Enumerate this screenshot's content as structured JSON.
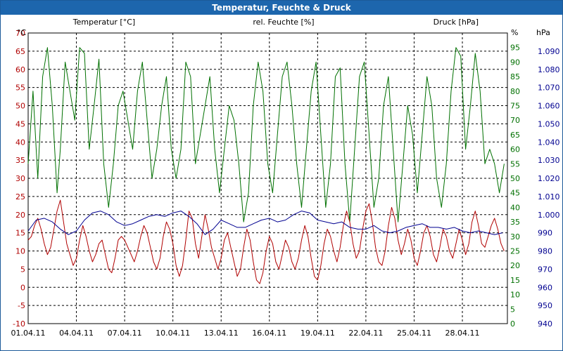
{
  "window": {
    "title": "Temperatur, Feuchte & Druck"
  },
  "chart_data": {
    "type": "line",
    "title": "Temperatur, Feuchte & Druck",
    "grid": true,
    "xlabel": "",
    "x_ticks": [
      "01.04.11",
      "04.04.11",
      "07.04.11",
      "10.04.11",
      "13.04.11",
      "16.04.11",
      "19.04.11",
      "22.04.11",
      "25.04.11",
      "28.04.11"
    ],
    "x_day_range": [
      1,
      30.8
    ],
    "axes": {
      "temperature": {
        "label": "Temperatur [°C]",
        "unit": "°C",
        "min": -10,
        "max": 70,
        "step": 5,
        "color": "#b00000",
        "side": "left"
      },
      "humidity": {
        "label": "rel. Feuchte [%]",
        "unit": "%",
        "min": 0,
        "max": 100,
        "step": 5,
        "color": "#007000",
        "side": "right"
      },
      "pressure": {
        "label": "Druck [hPa]",
        "unit": "hPa",
        "min": 940,
        "max": 1100,
        "step": 10,
        "color": "#000090",
        "side": "right"
      }
    },
    "series": [
      {
        "name": "Temperatur [°C]",
        "axis": "temperature",
        "color": "#b00000",
        "points": [
          [
            1.0,
            13
          ],
          [
            1.2,
            14
          ],
          [
            1.4,
            17
          ],
          [
            1.6,
            19
          ],
          [
            1.8,
            16
          ],
          [
            2.0,
            12
          ],
          [
            2.2,
            9
          ],
          [
            2.4,
            11
          ],
          [
            2.6,
            16
          ],
          [
            2.8,
            21
          ],
          [
            3.0,
            24
          ],
          [
            3.2,
            18
          ],
          [
            3.4,
            12
          ],
          [
            3.6,
            9
          ],
          [
            3.8,
            6
          ],
          [
            4.0,
            8
          ],
          [
            4.2,
            13
          ],
          [
            4.4,
            17
          ],
          [
            4.6,
            14
          ],
          [
            4.8,
            10
          ],
          [
            5.0,
            7
          ],
          [
            5.2,
            9
          ],
          [
            5.4,
            12
          ],
          [
            5.6,
            13
          ],
          [
            5.8,
            9
          ],
          [
            6.0,
            5
          ],
          [
            6.2,
            4
          ],
          [
            6.4,
            8
          ],
          [
            6.6,
            13
          ],
          [
            6.8,
            14
          ],
          [
            7.0,
            13
          ],
          [
            7.2,
            11
          ],
          [
            7.4,
            9
          ],
          [
            7.6,
            7
          ],
          [
            7.8,
            10
          ],
          [
            8.0,
            14
          ],
          [
            8.2,
            17
          ],
          [
            8.4,
            15
          ],
          [
            8.6,
            11
          ],
          [
            8.8,
            7
          ],
          [
            9.0,
            5
          ],
          [
            9.2,
            8
          ],
          [
            9.4,
            14
          ],
          [
            9.6,
            18
          ],
          [
            9.8,
            16
          ],
          [
            10.0,
            12
          ],
          [
            10.2,
            6
          ],
          [
            10.4,
            3
          ],
          [
            10.6,
            6
          ],
          [
            10.8,
            13
          ],
          [
            11.0,
            21
          ],
          [
            11.2,
            19
          ],
          [
            11.4,
            12
          ],
          [
            11.6,
            8
          ],
          [
            11.8,
            14
          ],
          [
            12.0,
            20
          ],
          [
            12.2,
            16
          ],
          [
            12.4,
            11
          ],
          [
            12.6,
            8
          ],
          [
            12.8,
            5
          ],
          [
            13.0,
            8
          ],
          [
            13.2,
            13
          ],
          [
            13.4,
            15
          ],
          [
            13.6,
            11
          ],
          [
            13.8,
            7
          ],
          [
            14.0,
            3
          ],
          [
            14.2,
            5
          ],
          [
            14.4,
            11
          ],
          [
            14.6,
            16
          ],
          [
            14.8,
            13
          ],
          [
            15.0,
            7
          ],
          [
            15.2,
            2
          ],
          [
            15.4,
            1
          ],
          [
            15.6,
            4
          ],
          [
            15.8,
            10
          ],
          [
            16.0,
            14
          ],
          [
            16.2,
            12
          ],
          [
            16.4,
            7
          ],
          [
            16.6,
            5
          ],
          [
            16.8,
            9
          ],
          [
            17.0,
            13
          ],
          [
            17.2,
            11
          ],
          [
            17.4,
            7
          ],
          [
            17.6,
            5
          ],
          [
            17.8,
            8
          ],
          [
            18.0,
            13
          ],
          [
            18.2,
            17
          ],
          [
            18.4,
            14
          ],
          [
            18.6,
            8
          ],
          [
            18.8,
            3
          ],
          [
            19.0,
            2
          ],
          [
            19.2,
            6
          ],
          [
            19.4,
            12
          ],
          [
            19.6,
            16
          ],
          [
            19.8,
            14
          ],
          [
            20.0,
            10
          ],
          [
            20.2,
            7
          ],
          [
            20.4,
            11
          ],
          [
            20.6,
            17
          ],
          [
            20.8,
            21
          ],
          [
            21.0,
            18
          ],
          [
            21.2,
            12
          ],
          [
            21.4,
            8
          ],
          [
            21.6,
            10
          ],
          [
            21.8,
            16
          ],
          [
            22.0,
            21
          ],
          [
            22.2,
            23
          ],
          [
            22.4,
            18
          ],
          [
            22.6,
            11
          ],
          [
            22.8,
            7
          ],
          [
            23.0,
            6
          ],
          [
            23.2,
            10
          ],
          [
            23.4,
            17
          ],
          [
            23.6,
            22
          ],
          [
            23.8,
            19
          ],
          [
            24.0,
            13
          ],
          [
            24.2,
            9
          ],
          [
            24.4,
            12
          ],
          [
            24.6,
            16
          ],
          [
            24.8,
            13
          ],
          [
            25.0,
            8
          ],
          [
            25.2,
            6
          ],
          [
            25.4,
            10
          ],
          [
            25.6,
            15
          ],
          [
            25.8,
            17
          ],
          [
            26.0,
            14
          ],
          [
            26.2,
            9
          ],
          [
            26.4,
            7
          ],
          [
            26.6,
            11
          ],
          [
            26.8,
            16
          ],
          [
            27.0,
            14
          ],
          [
            27.2,
            10
          ],
          [
            27.4,
            8
          ],
          [
            27.6,
            12
          ],
          [
            27.8,
            16
          ],
          [
            28.0,
            13
          ],
          [
            28.2,
            9
          ],
          [
            28.4,
            12
          ],
          [
            28.6,
            18
          ],
          [
            28.8,
            21
          ],
          [
            29.0,
            17
          ],
          [
            29.2,
            12
          ],
          [
            29.4,
            11
          ],
          [
            29.6,
            14
          ],
          [
            29.8,
            17
          ],
          [
            30.0,
            19
          ],
          [
            30.2,
            16
          ],
          [
            30.4,
            12
          ],
          [
            30.6,
            10
          ]
        ]
      },
      {
        "name": "rel. Feuchte [%]",
        "axis": "humidity",
        "color": "#007000",
        "points": [
          [
            1.0,
            55
          ],
          [
            1.3,
            80
          ],
          [
            1.6,
            50
          ],
          [
            1.9,
            85
          ],
          [
            2.2,
            95
          ],
          [
            2.5,
            75
          ],
          [
            2.8,
            45
          ],
          [
            3.0,
            60
          ],
          [
            3.3,
            90
          ],
          [
            3.6,
            80
          ],
          [
            3.9,
            70
          ],
          [
            4.2,
            95
          ],
          [
            4.5,
            93
          ],
          [
            4.8,
            60
          ],
          [
            5.1,
            75
          ],
          [
            5.4,
            91
          ],
          [
            5.7,
            55
          ],
          [
            6.0,
            40
          ],
          [
            6.3,
            55
          ],
          [
            6.6,
            75
          ],
          [
            6.9,
            80
          ],
          [
            7.2,
            70
          ],
          [
            7.5,
            60
          ],
          [
            7.8,
            80
          ],
          [
            8.1,
            90
          ],
          [
            8.4,
            70
          ],
          [
            8.7,
            50
          ],
          [
            9.0,
            60
          ],
          [
            9.3,
            75
          ],
          [
            9.6,
            85
          ],
          [
            9.9,
            60
          ],
          [
            10.2,
            50
          ],
          [
            10.5,
            60
          ],
          [
            10.8,
            90
          ],
          [
            11.1,
            85
          ],
          [
            11.4,
            55
          ],
          [
            11.7,
            65
          ],
          [
            12.0,
            75
          ],
          [
            12.3,
            85
          ],
          [
            12.6,
            60
          ],
          [
            12.9,
            45
          ],
          [
            13.2,
            60
          ],
          [
            13.5,
            75
          ],
          [
            13.8,
            70
          ],
          [
            14.1,
            55
          ],
          [
            14.4,
            35
          ],
          [
            14.7,
            45
          ],
          [
            15.0,
            75
          ],
          [
            15.3,
            90
          ],
          [
            15.6,
            80
          ],
          [
            15.9,
            55
          ],
          [
            16.2,
            45
          ],
          [
            16.5,
            65
          ],
          [
            16.8,
            85
          ],
          [
            17.1,
            90
          ],
          [
            17.4,
            75
          ],
          [
            17.7,
            55
          ],
          [
            18.0,
            40
          ],
          [
            18.3,
            60
          ],
          [
            18.6,
            80
          ],
          [
            18.9,
            90
          ],
          [
            19.2,
            65
          ],
          [
            19.5,
            40
          ],
          [
            19.8,
            55
          ],
          [
            20.1,
            85
          ],
          [
            20.4,
            88
          ],
          [
            20.7,
            55
          ],
          [
            21.0,
            35
          ],
          [
            21.3,
            60
          ],
          [
            21.6,
            85
          ],
          [
            21.9,
            90
          ],
          [
            22.2,
            65
          ],
          [
            22.5,
            40
          ],
          [
            22.8,
            50
          ],
          [
            23.1,
            75
          ],
          [
            23.4,
            85
          ],
          [
            23.7,
            60
          ],
          [
            24.0,
            35
          ],
          [
            24.3,
            55
          ],
          [
            24.6,
            75
          ],
          [
            24.9,
            65
          ],
          [
            25.2,
            45
          ],
          [
            25.5,
            65
          ],
          [
            25.8,
            85
          ],
          [
            26.1,
            75
          ],
          [
            26.4,
            50
          ],
          [
            26.7,
            40
          ],
          [
            27.0,
            55
          ],
          [
            27.3,
            80
          ],
          [
            27.6,
            95
          ],
          [
            27.9,
            92
          ],
          [
            28.2,
            60
          ],
          [
            28.5,
            75
          ],
          [
            28.8,
            93
          ],
          [
            29.1,
            80
          ],
          [
            29.4,
            55
          ],
          [
            29.7,
            60
          ],
          [
            30.0,
            55
          ],
          [
            30.3,
            45
          ],
          [
            30.6,
            55
          ]
        ]
      },
      {
        "name": "Druck [hPa]",
        "axis": "pressure",
        "color": "#000090",
        "points": [
          [
            1.0,
            991
          ],
          [
            1.5,
            997
          ],
          [
            2.0,
            998
          ],
          [
            2.5,
            996
          ],
          [
            3.0,
            992
          ],
          [
            3.5,
            989
          ],
          [
            4.0,
            991
          ],
          [
            4.5,
            997
          ],
          [
            5.0,
            1001
          ],
          [
            5.5,
            1002
          ],
          [
            6.0,
            1000
          ],
          [
            6.5,
            996
          ],
          [
            7.0,
            994
          ],
          [
            7.5,
            995
          ],
          [
            8.0,
            997
          ],
          [
            8.5,
            999
          ],
          [
            9.0,
            1000
          ],
          [
            9.5,
            999
          ],
          [
            10.0,
            1001
          ],
          [
            10.5,
            1002
          ],
          [
            11.0,
            999
          ],
          [
            11.5,
            995
          ],
          [
            12.0,
            989
          ],
          [
            12.5,
            992
          ],
          [
            13.0,
            997
          ],
          [
            13.5,
            995
          ],
          [
            14.0,
            993
          ],
          [
            14.5,
            993
          ],
          [
            15.0,
            995
          ],
          [
            15.5,
            997
          ],
          [
            16.0,
            998
          ],
          [
            16.5,
            996
          ],
          [
            17.0,
            997
          ],
          [
            17.5,
            1000
          ],
          [
            18.0,
            1002
          ],
          [
            18.5,
            1001
          ],
          [
            19.0,
            997
          ],
          [
            19.5,
            996
          ],
          [
            20.0,
            995
          ],
          [
            20.5,
            996
          ],
          [
            21.0,
            993
          ],
          [
            21.5,
            992
          ],
          [
            22.0,
            992
          ],
          [
            22.5,
            994
          ],
          [
            23.0,
            991
          ],
          [
            23.5,
            990
          ],
          [
            24.0,
            991
          ],
          [
            24.5,
            993
          ],
          [
            25.0,
            994
          ],
          [
            25.5,
            995
          ],
          [
            26.0,
            993
          ],
          [
            26.5,
            993
          ],
          [
            27.0,
            992
          ],
          [
            27.5,
            993
          ],
          [
            28.0,
            991
          ],
          [
            28.5,
            990
          ],
          [
            29.0,
            991
          ],
          [
            29.5,
            990
          ],
          [
            30.0,
            989
          ],
          [
            30.5,
            990
          ]
        ]
      }
    ]
  }
}
